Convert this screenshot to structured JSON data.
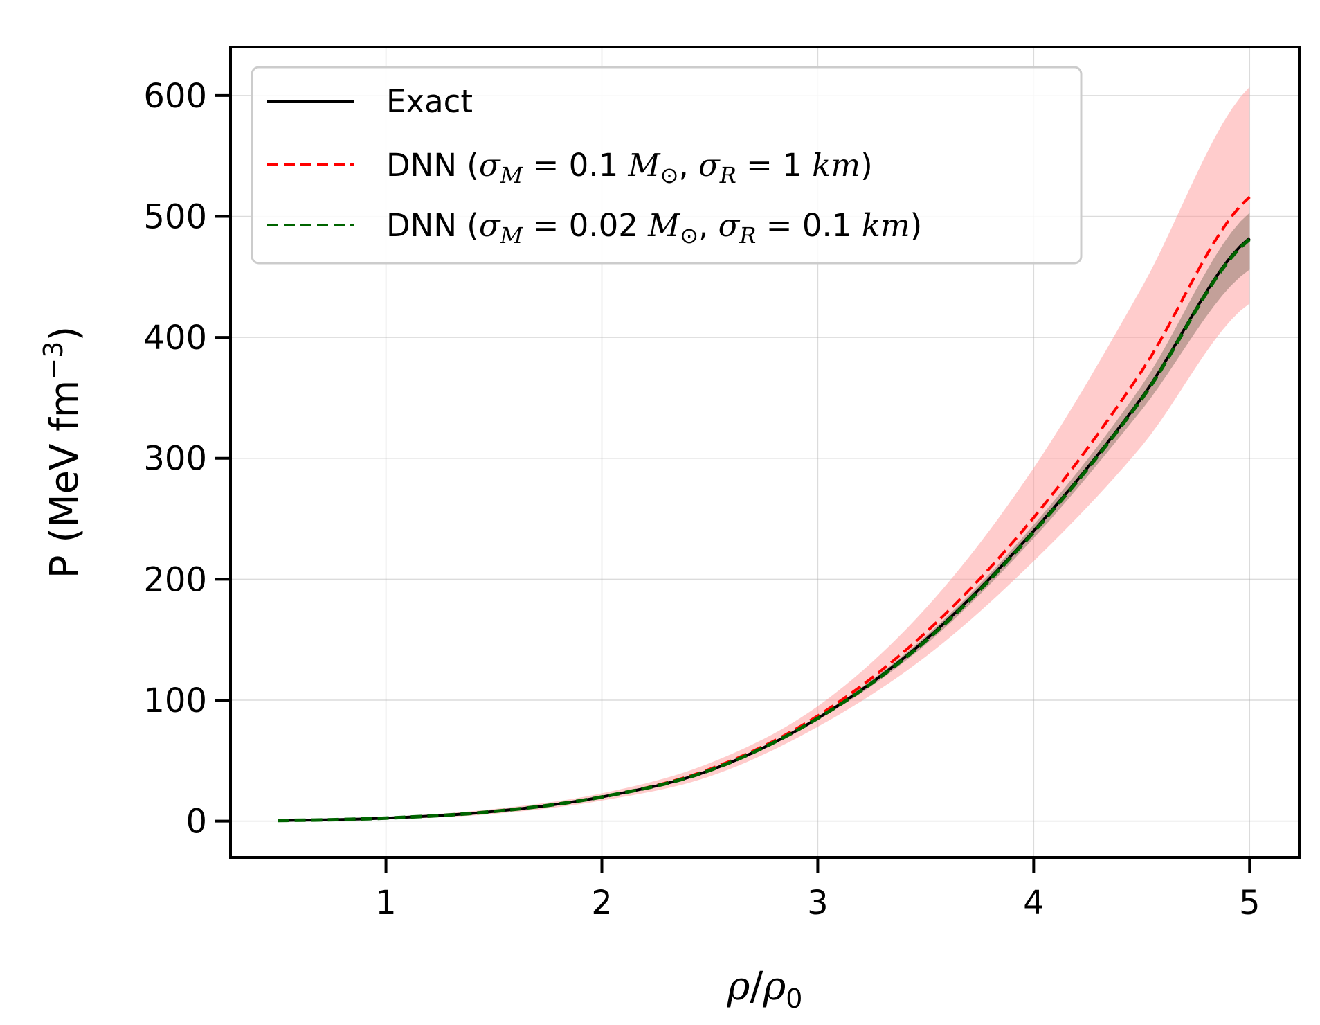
{
  "chart_data": {
    "type": "line",
    "xlabel": "ρ/ρ0",
    "ylabel": "P (MeV fm⁻³)",
    "xlim": [
      0.28,
      5.23
    ],
    "ylim": [
      -30,
      640
    ],
    "x_ticks": [
      1,
      2,
      3,
      4,
      5
    ],
    "y_ticks": [
      0,
      100,
      200,
      300,
      400,
      500,
      600
    ],
    "grid": true,
    "legend_position": "top-left",
    "colors": {
      "exact": "#000000",
      "dnn_wide": "#ff0000",
      "dnn_narrow": "#006400",
      "band_wide": "#ff9a9a",
      "band_narrow": "#7a6a5a"
    },
    "x": [
      0.5,
      1.0,
      1.5,
      2.0,
      2.5,
      3.0,
      3.5,
      4.0,
      4.5,
      5.0
    ],
    "series": [
      {
        "name": "Exact",
        "style": "solid",
        "values": [
          0.5,
          2.5,
          8,
          20,
          42,
          85,
          150,
          240,
          350,
          482
        ]
      },
      {
        "name": "DNN (σM = 0.1 M⊙, σR = 1 km)",
        "style": "dashed",
        "values": [
          0.5,
          2.5,
          8,
          20,
          43,
          87,
          156,
          251,
          372,
          516
        ],
        "band_lower": [
          0,
          1.5,
          6,
          17,
          37,
          78,
          136,
          215,
          310,
          428
        ],
        "band_upper": [
          1,
          3.5,
          10,
          23,
          48,
          95,
          176,
          292,
          441,
          607
        ]
      },
      {
        "name": "DNN (σM = 0.02 M⊙, σR = 0.1 km)",
        "style": "dashed",
        "values": [
          0.5,
          2.5,
          8,
          20,
          42,
          85,
          149,
          239,
          349,
          481
        ],
        "band_lower": [
          0.2,
          2.2,
          7.6,
          19.4,
          41,
          83.5,
          146,
          234,
          340,
          456
        ],
        "band_upper": [
          0.8,
          2.8,
          8.4,
          20.6,
          43,
          86.5,
          153,
          245,
          360,
          503
        ]
      }
    ],
    "legend": {
      "entry1": "Exact",
      "entry2_prefix": "DNN (",
      "entry2_sigmaM": "0.1",
      "entry2_sigmaR": "1",
      "entry3_prefix": "DNN (",
      "entry3_sigmaM": "0.02",
      "entry3_sigmaR": "0.1",
      "sym_sigma": "σ",
      "sub_M": "M",
      "sub_R": "R",
      "sym_Msun": "M",
      "sub_sun": "⊙",
      "unit_km": "km",
      "eq": " = ",
      "comma": ", ",
      "close": ")"
    },
    "axis_text": {
      "x_rho": "ρ",
      "x_slash": "/",
      "x_rho0": "ρ",
      "x_sub0": "0",
      "y_main": "P (MeV fm",
      "y_sup": "−3",
      "y_close": ")"
    }
  }
}
